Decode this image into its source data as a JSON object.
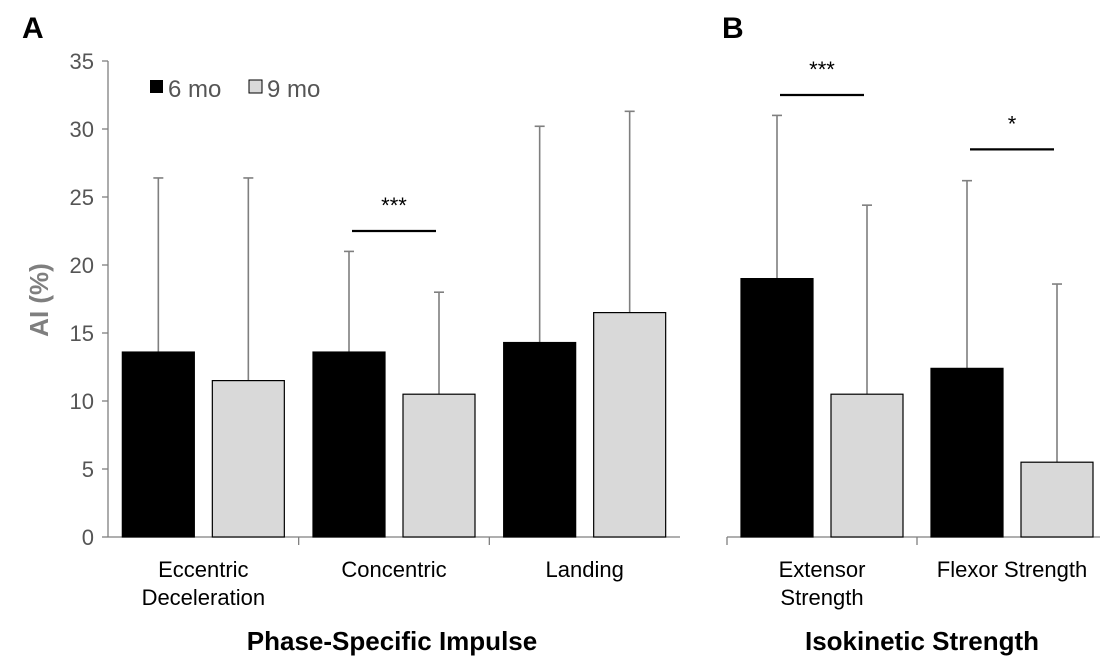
{
  "chart_data": [
    {
      "type": "bar",
      "panel": "A",
      "title": "Phase-Specific Impulse",
      "ylabel": "AI (%)",
      "ylim": [
        0,
        35
      ],
      "yticks": [
        0,
        5,
        10,
        15,
        20,
        25,
        30,
        35
      ],
      "categories": [
        "Eccentric Deceleration",
        "Concentric",
        "Landing"
      ],
      "series": [
        {
          "name": "6 mo",
          "color": "#000000",
          "values": [
            13.6,
            13.6,
            14.3
          ],
          "error_upper": [
            26.4,
            21.0,
            30.2
          ]
        },
        {
          "name": "9 mo",
          "color": "#d9d9d9",
          "values": [
            11.5,
            10.5,
            16.5
          ],
          "error_upper": [
            26.4,
            18.0,
            31.3
          ]
        }
      ],
      "significance": [
        {
          "category": "Concentric",
          "label": "***"
        }
      ],
      "legend": "top-left"
    },
    {
      "type": "bar",
      "panel": "B",
      "title": "Isokinetic Strength",
      "categories": [
        "Extensor Strength",
        "Flexor Strength"
      ],
      "series": [
        {
          "name": "6 mo",
          "color": "#000000",
          "values": [
            19.0,
            12.4
          ],
          "error_upper": [
            31.0,
            26.2
          ]
        },
        {
          "name": "9 mo",
          "color": "#d9d9d9",
          "values": [
            10.5,
            5.5
          ],
          "error_upper": [
            24.4,
            18.6
          ]
        }
      ],
      "significance": [
        {
          "category": "Extensor Strength",
          "label": "***"
        },
        {
          "category": "Flexor Strength",
          "label": "*"
        }
      ]
    }
  ]
}
